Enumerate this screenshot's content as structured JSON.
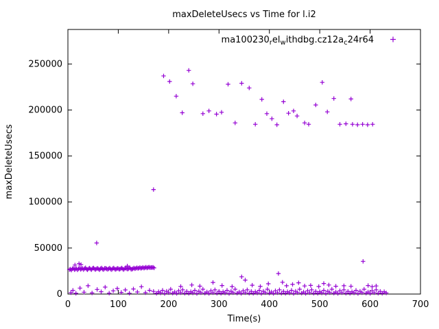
{
  "chart_data": {
    "type": "scatter",
    "title": "maxDeleteUsecs vs Time for l.i2",
    "xlabel": "Time(s)",
    "ylabel": "maxDeleteUsecs",
    "xlim": [
      0,
      700
    ],
    "ylim": [
      0,
      287500
    ],
    "xticks": [
      0,
      100,
      200,
      300,
      400,
      500,
      600,
      700
    ],
    "yticks": [
      0,
      50000,
      100000,
      150000,
      200000,
      250000
    ],
    "grid": false,
    "marker": "plus",
    "marker_color": "#9400d3",
    "legend": {
      "position": "top-right-inside",
      "label": "ma100230_rel_withdbg.cz12a_c24r64",
      "segments": [
        {
          "text": "ma100230"
        },
        {
          "text": "r",
          "sub": true
        },
        {
          "text": "el"
        },
        {
          "text": "w",
          "sub": true
        },
        {
          "text": "ithdbg.cz12a"
        },
        {
          "text": "c",
          "sub": true
        },
        {
          "text": "24r64"
        }
      ]
    },
    "series": [
      {
        "name": "ma100230_rel_withdbg.cz12a_c24r64",
        "marker": "plus",
        "color": "#9400d3",
        "points": [
          [
            3,
            26500
          ],
          [
            5,
            27000
          ],
          [
            7,
            26000
          ],
          [
            9,
            27500
          ],
          [
            11,
            28000
          ],
          [
            13,
            26500
          ],
          [
            15,
            27000
          ],
          [
            17,
            27800
          ],
          [
            19,
            26200
          ],
          [
            21,
            27500
          ],
          [
            23,
            28200
          ],
          [
            25,
            26800
          ],
          [
            27,
            27300
          ],
          [
            29,
            28000
          ],
          [
            31,
            26500
          ],
          [
            33,
            27800
          ],
          [
            35,
            28500
          ],
          [
            37,
            27000
          ],
          [
            39,
            26300
          ],
          [
            41,
            27600
          ],
          [
            43,
            28200
          ],
          [
            45,
            27000
          ],
          [
            47,
            26500
          ],
          [
            49,
            27900
          ],
          [
            51,
            28300
          ],
          [
            53,
            27200
          ],
          [
            55,
            26700
          ],
          [
            57,
            27500
          ],
          [
            59,
            28000
          ],
          [
            61,
            27100
          ],
          [
            63,
            26400
          ],
          [
            65,
            27700
          ],
          [
            67,
            28400
          ],
          [
            69,
            27000
          ],
          [
            71,
            26600
          ],
          [
            73,
            27900
          ],
          [
            75,
            28100
          ],
          [
            77,
            27300
          ],
          [
            79,
            26800
          ],
          [
            81,
            27500
          ],
          [
            83,
            28200
          ],
          [
            85,
            27000
          ],
          [
            87,
            26500
          ],
          [
            89,
            27800
          ],
          [
            91,
            28300
          ],
          [
            93,
            27100
          ],
          [
            95,
            26700
          ],
          [
            97,
            27600
          ],
          [
            99,
            28000
          ],
          [
            101,
            27200
          ],
          [
            103,
            26900
          ],
          [
            105,
            27700
          ],
          [
            107,
            28400
          ],
          [
            109,
            27100
          ],
          [
            111,
            26600
          ],
          [
            113,
            27900
          ],
          [
            115,
            28200
          ],
          [
            117,
            27400
          ],
          [
            119,
            27000
          ],
          [
            121,
            27800
          ],
          [
            123,
            28500
          ],
          [
            125,
            27200
          ],
          [
            127,
            26800
          ],
          [
            129,
            27600
          ],
          [
            131,
            28300
          ],
          [
            133,
            27500
          ],
          [
            135,
            28000
          ],
          [
            137,
            28600
          ],
          [
            139,
            27800
          ],
          [
            141,
            28200
          ],
          [
            143,
            28800
          ],
          [
            145,
            27900
          ],
          [
            147,
            28400
          ],
          [
            149,
            29000
          ],
          [
            151,
            28100
          ],
          [
            153,
            28600
          ],
          [
            155,
            29200
          ],
          [
            157,
            28300
          ],
          [
            159,
            28800
          ],
          [
            161,
            29300
          ],
          [
            163,
            28500
          ],
          [
            165,
            29000
          ],
          [
            167,
            28700
          ],
          [
            169,
            29100
          ],
          [
            171,
            28400
          ],
          [
            14,
            31500
          ],
          [
            22,
            33000
          ],
          [
            26,
            32000
          ],
          [
            118,
            30500
          ],
          [
            6,
            1500
          ],
          [
            10,
            4000
          ],
          [
            16,
            800
          ],
          [
            24,
            6500
          ],
          [
            32,
            2000
          ],
          [
            40,
            9000
          ],
          [
            48,
            1200
          ],
          [
            58,
            5000
          ],
          [
            66,
            2500
          ],
          [
            74,
            7500
          ],
          [
            82,
            1000
          ],
          [
            90,
            3500
          ],
          [
            98,
            6000
          ],
          [
            106,
            1800
          ],
          [
            114,
            4500
          ],
          [
            122,
            900
          ],
          [
            130,
            5500
          ],
          [
            138,
            2200
          ],
          [
            146,
            8000
          ],
          [
            154,
            1500
          ],
          [
            162,
            4000
          ],
          [
            170,
            2800
          ],
          [
            57,
            55500
          ],
          [
            170,
            113500
          ],
          [
            176,
            800
          ],
          [
            180,
            2500
          ],
          [
            184,
            1200
          ],
          [
            188,
            4000
          ],
          [
            192,
            600
          ],
          [
            196,
            3000
          ],
          [
            200,
            1500
          ],
          [
            204,
            5200
          ],
          [
            208,
            1000
          ],
          [
            212,
            2200
          ],
          [
            216,
            700
          ],
          [
            220,
            3600
          ],
          [
            224,
            1400
          ],
          [
            228,
            4600
          ],
          [
            232,
            900
          ],
          [
            236,
            2900
          ],
          [
            240,
            800
          ],
          [
            244,
            2500
          ],
          [
            248,
            1200
          ],
          [
            252,
            4000
          ],
          [
            256,
            600
          ],
          [
            260,
            3000
          ],
          [
            264,
            1500
          ],
          [
            268,
            5200
          ],
          [
            272,
            1000
          ],
          [
            276,
            2200
          ],
          [
            280,
            700
          ],
          [
            284,
            3600
          ],
          [
            288,
            1400
          ],
          [
            292,
            4600
          ],
          [
            296,
            900
          ],
          [
            300,
            2900
          ],
          [
            304,
            800
          ],
          [
            308,
            2500
          ],
          [
            312,
            1200
          ],
          [
            316,
            4000
          ],
          [
            320,
            600
          ],
          [
            324,
            3000
          ],
          [
            328,
            1500
          ],
          [
            332,
            5200
          ],
          [
            336,
            1000
          ],
          [
            340,
            2200
          ],
          [
            344,
            700
          ],
          [
            348,
            3600
          ],
          [
            352,
            1400
          ],
          [
            356,
            4600
          ],
          [
            360,
            900
          ],
          [
            364,
            2900
          ],
          [
            368,
            800
          ],
          [
            372,
            2500
          ],
          [
            376,
            1200
          ],
          [
            380,
            4000
          ],
          [
            384,
            600
          ],
          [
            388,
            3000
          ],
          [
            392,
            1500
          ],
          [
            396,
            5200
          ],
          [
            400,
            1000
          ],
          [
            404,
            2200
          ],
          [
            408,
            700
          ],
          [
            412,
            3600
          ],
          [
            416,
            1400
          ],
          [
            420,
            4600
          ],
          [
            424,
            900
          ],
          [
            428,
            2900
          ],
          [
            432,
            800
          ],
          [
            436,
            2500
          ],
          [
            440,
            1200
          ],
          [
            444,
            4000
          ],
          [
            448,
            600
          ],
          [
            452,
            3000
          ],
          [
            456,
            1500
          ],
          [
            460,
            5200
          ],
          [
            464,
            1000
          ],
          [
            468,
            2200
          ],
          [
            472,
            700
          ],
          [
            476,
            3600
          ],
          [
            480,
            1400
          ],
          [
            484,
            4600
          ],
          [
            488,
            900
          ],
          [
            492,
            2900
          ],
          [
            496,
            800
          ],
          [
            500,
            2500
          ],
          [
            504,
            1200
          ],
          [
            508,
            4000
          ],
          [
            512,
            600
          ],
          [
            516,
            3000
          ],
          [
            520,
            1500
          ],
          [
            524,
            5200
          ],
          [
            528,
            1000
          ],
          [
            532,
            2200
          ],
          [
            536,
            700
          ],
          [
            540,
            3600
          ],
          [
            544,
            1400
          ],
          [
            548,
            4600
          ],
          [
            552,
            900
          ],
          [
            556,
            2900
          ],
          [
            560,
            800
          ],
          [
            564,
            2500
          ],
          [
            568,
            1200
          ],
          [
            572,
            4000
          ],
          [
            576,
            600
          ],
          [
            580,
            3000
          ],
          [
            584,
            1500
          ],
          [
            588,
            5200
          ],
          [
            592,
            1000
          ],
          [
            596,
            2200
          ],
          [
            600,
            700
          ],
          [
            604,
            3600
          ],
          [
            608,
            1400
          ],
          [
            612,
            4600
          ],
          [
            616,
            900
          ],
          [
            620,
            2900
          ],
          [
            624,
            800
          ],
          [
            628,
            2500
          ],
          [
            632,
            1200
          ],
          [
            224,
            8200
          ],
          [
            246,
            9800
          ],
          [
            262,
            8600
          ],
          [
            288,
            12600
          ],
          [
            306,
            9200
          ],
          [
            326,
            8100
          ],
          [
            345,
            18800
          ],
          [
            352,
            15200
          ],
          [
            366,
            9600
          ],
          [
            382,
            8300
          ],
          [
            398,
            11200
          ],
          [
            418,
            22300
          ],
          [
            426,
            12800
          ],
          [
            434,
            9000
          ],
          [
            446,
            10500
          ],
          [
            458,
            12200
          ],
          [
            470,
            8800
          ],
          [
            482,
            9400
          ],
          [
            498,
            8200
          ],
          [
            508,
            11500
          ],
          [
            518,
            9800
          ],
          [
            532,
            8500
          ],
          [
            548,
            9000
          ],
          [
            562,
            8400
          ],
          [
            586,
            35500
          ],
          [
            596,
            9200
          ],
          [
            604,
            8000
          ],
          [
            612,
            8800
          ],
          [
            190,
            237000
          ],
          [
            202,
            231000
          ],
          [
            215,
            215000
          ],
          [
            227,
            197000
          ],
          [
            240,
            243000
          ],
          [
            248,
            228500
          ],
          [
            268,
            196000
          ],
          [
            280,
            199000
          ],
          [
            295,
            195500
          ],
          [
            305,
            197500
          ],
          [
            318,
            228000
          ],
          [
            332,
            186000
          ],
          [
            345,
            229000
          ],
          [
            360,
            224000
          ],
          [
            372,
            184500
          ],
          [
            385,
            211500
          ],
          [
            395,
            196000
          ],
          [
            405,
            190500
          ],
          [
            415,
            184000
          ],
          [
            428,
            209000
          ],
          [
            438,
            196500
          ],
          [
            448,
            199000
          ],
          [
            455,
            193500
          ],
          [
            470,
            186000
          ],
          [
            478,
            184500
          ],
          [
            492,
            205500
          ],
          [
            505,
            230000
          ],
          [
            515,
            198000
          ],
          [
            528,
            212500
          ],
          [
            540,
            184500
          ],
          [
            552,
            185000
          ],
          [
            562,
            212000
          ],
          [
            565,
            184500
          ],
          [
            575,
            184000
          ],
          [
            585,
            184500
          ],
          [
            595,
            184000
          ],
          [
            605,
            184500
          ]
        ]
      }
    ]
  }
}
